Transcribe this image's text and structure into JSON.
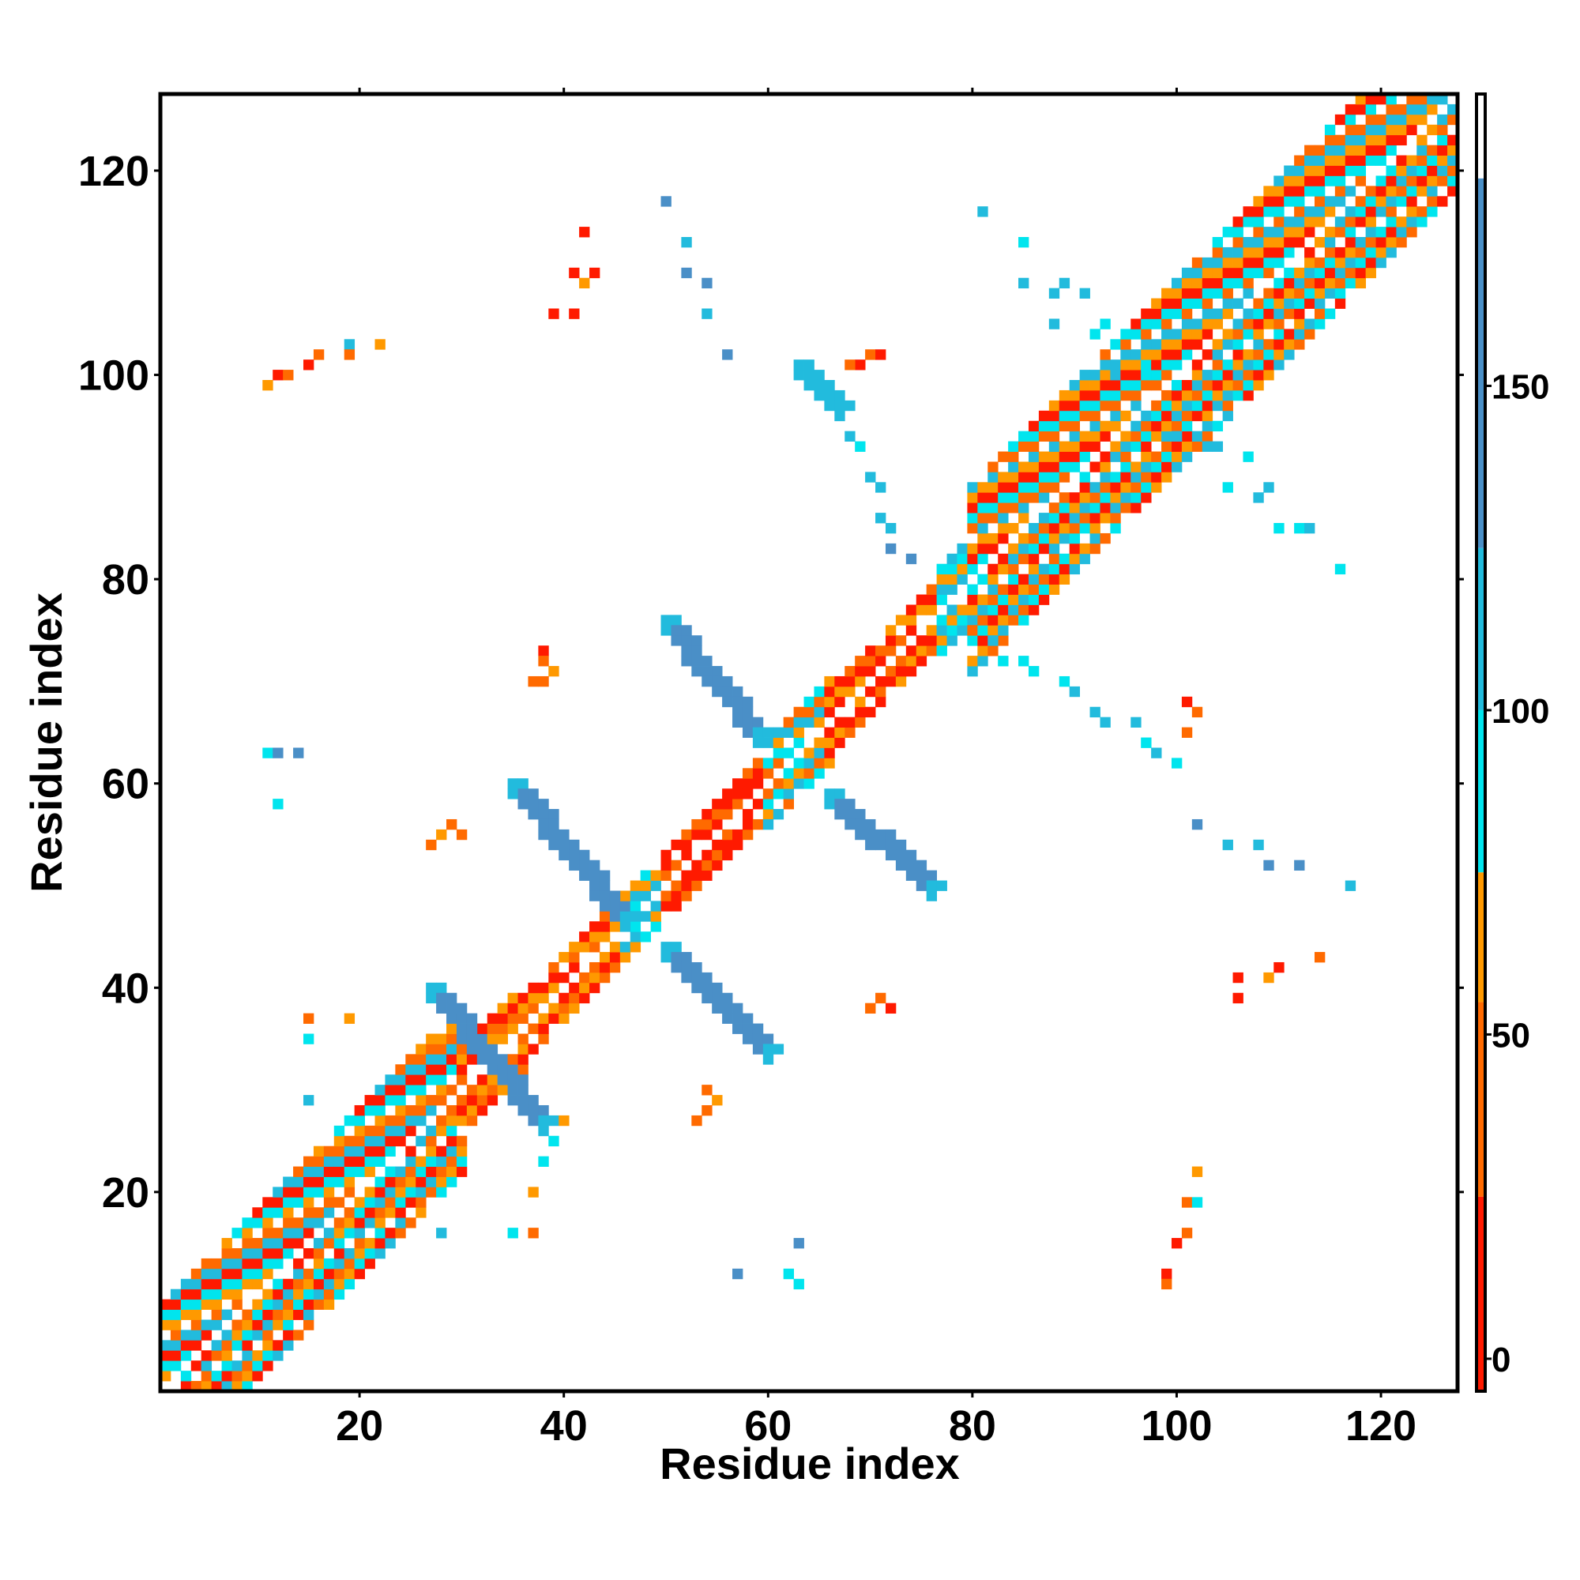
{
  "chart_data": {
    "type": "heatmap",
    "title": "",
    "xlabel": "Residue index",
    "ylabel": "Residue index",
    "xlim": [
      1,
      127
    ],
    "ylim": [
      1,
      127
    ],
    "x_ticks": [
      "20",
      "40",
      "60",
      "80",
      "100",
      "120"
    ],
    "y_ticks": [
      "20",
      "40",
      "60",
      "80",
      "100",
      "120"
    ],
    "colorbar": {
      "range": [
        -5,
        195
      ],
      "ticks": [
        "0",
        "50",
        "100",
        "150"
      ],
      "bands": [
        {
          "from": -5,
          "to": 25,
          "color": "#ff1a00"
        },
        {
          "from": 25,
          "to": 55,
          "color": "#ff6a00"
        },
        {
          "from": 55,
          "to": 75,
          "color": "#ff9900"
        },
        {
          "from": 75,
          "to": 100,
          "color": "#00e5ee"
        },
        {
          "from": 100,
          "to": 125,
          "color": "#22bbdd"
        },
        {
          "from": 125,
          "to": 182,
          "color": "#4a8fc7"
        },
        {
          "from": 182,
          "to": 195,
          "color": "#ffffff"
        }
      ]
    },
    "level_colors": {
      "L1": "#ff1a00",
      "L2": "#ff6a00",
      "L3": "#ff9900",
      "L4": "#00e5ee",
      "L5": "#22bbdd",
      "L6": "#4a8fc7"
    },
    "diagonal_bands": [
      {
        "from": 1,
        "to": 30,
        "half_width": 8,
        "pattern": [
          "L2",
          "L3",
          "L4",
          "L1",
          "L5"
        ]
      },
      {
        "from": 30,
        "to": 36,
        "half_width": 4,
        "pattern": [
          "L3",
          "L2",
          "L1"
        ]
      },
      {
        "from": 36,
        "to": 46,
        "half_width": 3,
        "pattern": [
          "L1",
          "L2",
          "L3"
        ]
      },
      {
        "from": 46,
        "to": 50,
        "half_width": 3,
        "pattern": [
          "L4",
          "L5",
          "L3"
        ]
      },
      {
        "from": 50,
        "to": 60,
        "half_width": 3,
        "pattern": [
          "L1",
          "L1",
          "L2"
        ]
      },
      {
        "from": 60,
        "to": 66,
        "half_width": 4,
        "pattern": [
          "L4",
          "L3",
          "L5",
          "L2"
        ]
      },
      {
        "from": 66,
        "to": 77,
        "half_width": 3,
        "pattern": [
          "L1",
          "L2",
          "L1",
          "L3"
        ]
      },
      {
        "from": 77,
        "to": 80,
        "half_width": 4,
        "pattern": [
          "L4",
          "L5",
          "L3"
        ]
      },
      {
        "from": 80,
        "to": 127,
        "half_width": 9,
        "pattern": [
          "L2",
          "L4",
          "L1",
          "L3",
          "L5"
        ]
      }
    ],
    "cross_bands": [
      {
        "x0": 27,
        "y0": 40,
        "x1": 38,
        "y1": 27,
        "width": 2,
        "level": "L6"
      },
      {
        "x0": 35,
        "y0": 60,
        "x1": 46,
        "y1": 47,
        "width": 2,
        "level": "L6"
      },
      {
        "x0": 50,
        "y0": 76,
        "x1": 59,
        "y1": 65,
        "width": 2,
        "level": "L6"
      },
      {
        "x0": 50,
        "y0": 44,
        "x1": 60,
        "y1": 34,
        "width": 2,
        "level": "L6"
      },
      {
        "x0": 66,
        "y0": 59,
        "x1": 76,
        "y1": 50,
        "width": 2,
        "level": "L6"
      },
      {
        "x0": 63,
        "y0": 101,
        "x1": 67,
        "y1": 97,
        "width": 2,
        "level": "L5"
      }
    ],
    "points": [
      [
        12,
        100,
        "L1"
      ],
      [
        11,
        99,
        "L3"
      ],
      [
        13,
        100,
        "L2"
      ],
      [
        15,
        101,
        "L1"
      ],
      [
        16,
        102,
        "L2"
      ],
      [
        19,
        103,
        "L5"
      ],
      [
        22,
        103,
        "L3"
      ],
      [
        19,
        102,
        "L2"
      ],
      [
        42,
        114,
        "L1"
      ],
      [
        41,
        110,
        "L1"
      ],
      [
        42,
        109,
        "L3"
      ],
      [
        43,
        110,
        "L1"
      ],
      [
        39,
        106,
        "L1"
      ],
      [
        41,
        106,
        "L1"
      ],
      [
        50,
        117,
        "L6"
      ],
      [
        52,
        113,
        "L5"
      ],
      [
        52,
        110,
        "L6"
      ],
      [
        54,
        109,
        "L6"
      ],
      [
        54,
        106,
        "L5"
      ],
      [
        56,
        102,
        "L6"
      ],
      [
        81,
        116,
        "L5"
      ],
      [
        85,
        113,
        "L4"
      ],
      [
        85,
        109,
        "L5"
      ],
      [
        88,
        108,
        "L5"
      ],
      [
        89,
        109,
        "L5"
      ],
      [
        91,
        108,
        "L5"
      ],
      [
        88,
        105,
        "L5"
      ],
      [
        93,
        105,
        "L4"
      ],
      [
        92,
        104,
        "L4"
      ],
      [
        96,
        104,
        "L4"
      ],
      [
        94,
        100,
        "L5"
      ],
      [
        97,
        101,
        "L4"
      ],
      [
        100,
        94,
        "L5"
      ],
      [
        103,
        93,
        "L5"
      ],
      [
        105,
        96,
        "L5"
      ],
      [
        104,
        93,
        "L5"
      ],
      [
        107,
        92,
        "L4"
      ],
      [
        105,
        89,
        "L4"
      ],
      [
        108,
        88,
        "L5"
      ],
      [
        109,
        89,
        "L5"
      ],
      [
        110,
        85,
        "L4"
      ],
      [
        112,
        85,
        "L4"
      ],
      [
        113,
        85,
        "L5"
      ],
      [
        116,
        81,
        "L4"
      ],
      [
        69,
        101,
        "L1"
      ],
      [
        70,
        102,
        "L2"
      ],
      [
        71,
        102,
        "L1"
      ],
      [
        68,
        101,
        "L2"
      ],
      [
        68,
        94,
        "L5"
      ],
      [
        69,
        93,
        "L4"
      ],
      [
        70,
        90,
        "L5"
      ],
      [
        71,
        89,
        "L5"
      ],
      [
        71,
        86,
        "L5"
      ],
      [
        72,
        85,
        "L5"
      ],
      [
        72,
        83,
        "L6"
      ],
      [
        74,
        82,
        "L6"
      ],
      [
        11,
        63,
        "L4"
      ],
      [
        12,
        63,
        "L6"
      ],
      [
        14,
        63,
        "L6"
      ],
      [
        12,
        58,
        "L4"
      ],
      [
        27,
        54,
        "L2"
      ],
      [
        28,
        55,
        "L3"
      ],
      [
        29,
        56,
        "L2"
      ],
      [
        30,
        55,
        "L2"
      ],
      [
        38,
        73,
        "L1"
      ],
      [
        38,
        72,
        "L2"
      ],
      [
        39,
        71,
        "L3"
      ],
      [
        37,
        70,
        "L2"
      ],
      [
        38,
        70,
        "L2"
      ],
      [
        15,
        37,
        "L2"
      ],
      [
        15,
        35,
        "L4"
      ],
      [
        19,
        37,
        "L3"
      ],
      [
        15,
        29,
        "L5"
      ],
      [
        40,
        27,
        "L3"
      ],
      [
        39,
        25,
        "L4"
      ],
      [
        38,
        23,
        "L4"
      ],
      [
        37,
        20,
        "L3"
      ],
      [
        37,
        16,
        "L2"
      ],
      [
        35,
        16,
        "L4"
      ],
      [
        28,
        16,
        "L5"
      ],
      [
        54,
        30,
        "L2"
      ],
      [
        55,
        29,
        "L3"
      ],
      [
        54,
        28,
        "L2"
      ],
      [
        53,
        27,
        "L2"
      ],
      [
        70,
        38,
        "L2"
      ],
      [
        71,
        39,
        "L2"
      ],
      [
        72,
        38,
        "L1"
      ],
      [
        63,
        15,
        "L6"
      ],
      [
        62,
        12,
        "L4"
      ],
      [
        63,
        11,
        "L4"
      ],
      [
        57,
        12,
        "L6"
      ],
      [
        102,
        22,
        "L3"
      ],
      [
        101,
        19,
        "L2"
      ],
      [
        102,
        19,
        "L4"
      ],
      [
        101,
        16,
        "L2"
      ],
      [
        100,
        15,
        "L1"
      ],
      [
        99,
        12,
        "L1"
      ],
      [
        99,
        11,
        "L2"
      ],
      [
        106,
        41,
        "L1"
      ],
      [
        106,
        39,
        "L1"
      ],
      [
        109,
        41,
        "L3"
      ],
      [
        110,
        42,
        "L1"
      ],
      [
        114,
        43,
        "L2"
      ],
      [
        102,
        56,
        "L6"
      ],
      [
        105,
        54,
        "L5"
      ],
      [
        108,
        54,
        "L5"
      ],
      [
        109,
        52,
        "L6"
      ],
      [
        112,
        52,
        "L6"
      ],
      [
        117,
        50,
        "L5"
      ],
      [
        82,
        74,
        "L5"
      ],
      [
        83,
        72,
        "L4"
      ],
      [
        85,
        72,
        "L4"
      ],
      [
        86,
        71,
        "L4"
      ],
      [
        89,
        70,
        "L4"
      ],
      [
        90,
        69,
        "L5"
      ],
      [
        92,
        67,
        "L5"
      ],
      [
        93,
        66,
        "L5"
      ],
      [
        96,
        66,
        "L5"
      ],
      [
        97,
        64,
        "L4"
      ],
      [
        98,
        63,
        "L5"
      ],
      [
        100,
        62,
        "L4"
      ],
      [
        101,
        68,
        "L1"
      ],
      [
        102,
        67,
        "L2"
      ],
      [
        101,
        65,
        "L2"
      ]
    ]
  }
}
